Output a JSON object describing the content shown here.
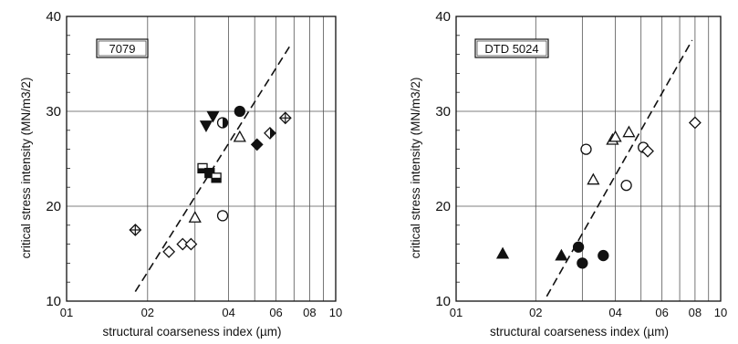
{
  "chart_data": [
    {
      "type": "scatter",
      "title": "7079",
      "xlabel": "structural coarseness index (µm)",
      "ylabel": "critical stress intensity (MN/m3/2)",
      "xscale": "log",
      "xlim": [
        0.1,
        1.0
      ],
      "ylim": [
        10,
        40
      ],
      "grid": "vertical log gridlines and horizontal lines at 20 and 30",
      "xticks": [
        0.1,
        0.2,
        0.4,
        0.6,
        0.8,
        1.0
      ],
      "xtick_labels": [
        "01",
        "02",
        "04",
        "06",
        "08",
        "10"
      ],
      "yticks": [
        10,
        20,
        30,
        40
      ],
      "ytick_labels": [
        "10",
        "20",
        "30",
        "40"
      ],
      "trend_line": {
        "style": "dashed",
        "points": [
          [
            0.18,
            11
          ],
          [
            0.68,
            37
          ]
        ]
      },
      "points": [
        {
          "x": 0.18,
          "y": 17.5,
          "marker": "crossed-diamond"
        },
        {
          "x": 0.24,
          "y": 15.2,
          "marker": "open-diamond"
        },
        {
          "x": 0.27,
          "y": 16.0,
          "marker": "open-diamond"
        },
        {
          "x": 0.29,
          "y": 16.0,
          "marker": "open-diamond"
        },
        {
          "x": 0.3,
          "y": 18.8,
          "marker": "open-triangle"
        },
        {
          "x": 0.32,
          "y": 24.0,
          "marker": "half-square"
        },
        {
          "x": 0.33,
          "y": 28.5,
          "marker": "filled-triangle-down"
        },
        {
          "x": 0.35,
          "y": 29.5,
          "marker": "filled-triangle-down"
        },
        {
          "x": 0.34,
          "y": 23.5,
          "marker": "filled-square"
        },
        {
          "x": 0.36,
          "y": 23.0,
          "marker": "half-square"
        },
        {
          "x": 0.38,
          "y": 28.8,
          "marker": "half-circle"
        },
        {
          "x": 0.38,
          "y": 19.0,
          "marker": "open-circle"
        },
        {
          "x": 0.44,
          "y": 30.0,
          "marker": "filled-circle"
        },
        {
          "x": 0.44,
          "y": 27.3,
          "marker": "open-triangle"
        },
        {
          "x": 0.51,
          "y": 26.5,
          "marker": "filled-diamond"
        },
        {
          "x": 0.57,
          "y": 27.7,
          "marker": "half-diamond"
        },
        {
          "x": 0.65,
          "y": 29.3,
          "marker": "crossed-diamond"
        }
      ]
    },
    {
      "type": "scatter",
      "title": "DTD 5024",
      "xlabel": "structural coarseness index (µm)",
      "ylabel": "critical stress intensity (MN/m3/2)",
      "xscale": "log",
      "xlim": [
        0.1,
        1.0
      ],
      "ylim": [
        10,
        40
      ],
      "grid": "vertical log gridlines and horizontal lines at 20 and 30",
      "xticks": [
        0.1,
        0.2,
        0.4,
        0.6,
        0.8,
        1.0
      ],
      "xtick_labels": [
        "01",
        "02",
        "04",
        "06",
        "08",
        "10"
      ],
      "yticks": [
        10,
        20,
        30,
        40
      ],
      "ytick_labels": [
        "10",
        "20",
        "30",
        "40"
      ],
      "trend_line": {
        "style": "dashed",
        "points": [
          [
            0.22,
            10.5
          ],
          [
            0.78,
            37.5
          ]
        ]
      },
      "points": [
        {
          "x": 0.15,
          "y": 15.0,
          "marker": "filled-triangle"
        },
        {
          "x": 0.25,
          "y": 14.8,
          "marker": "filled-triangle"
        },
        {
          "x": 0.29,
          "y": 15.7,
          "marker": "filled-circle"
        },
        {
          "x": 0.3,
          "y": 14.0,
          "marker": "filled-circle"
        },
        {
          "x": 0.36,
          "y": 14.8,
          "marker": "filled-circle"
        },
        {
          "x": 0.31,
          "y": 26.0,
          "marker": "open-circle"
        },
        {
          "x": 0.33,
          "y": 22.8,
          "marker": "open-triangle"
        },
        {
          "x": 0.39,
          "y": 27.0,
          "marker": "open-triangle"
        },
        {
          "x": 0.4,
          "y": 27.3,
          "marker": "open-triangle"
        },
        {
          "x": 0.45,
          "y": 27.8,
          "marker": "open-triangle"
        },
        {
          "x": 0.44,
          "y": 22.2,
          "marker": "open-circle"
        },
        {
          "x": 0.51,
          "y": 26.2,
          "marker": "open-circle"
        },
        {
          "x": 0.53,
          "y": 25.8,
          "marker": "open-diamond"
        },
        {
          "x": 0.8,
          "y": 28.8,
          "marker": "open-diamond"
        }
      ]
    }
  ]
}
